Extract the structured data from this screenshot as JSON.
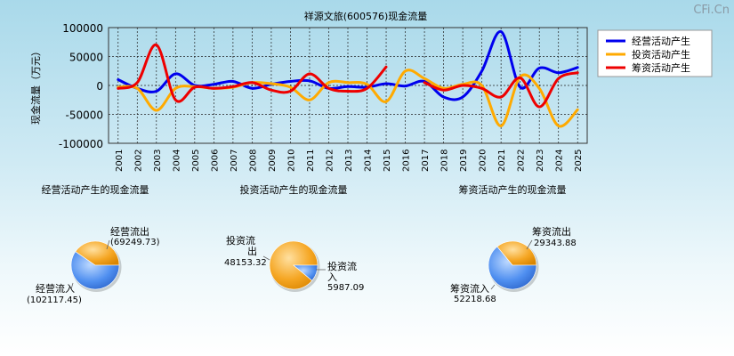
{
  "watermark": "CFi.Cn",
  "chart_data": [
    {
      "type": "line",
      "title": "祥源文旅(600576)现金流量",
      "ylabel": "现金流量（万元）",
      "ylim": [
        -100000,
        100000
      ],
      "yticks": [
        100000,
        50000,
        0,
        -50000,
        -100000
      ],
      "grid": true,
      "legend_position": "right",
      "categories": [
        "2001",
        "2002",
        "2003",
        "2004",
        "2005",
        "2006",
        "2007",
        "2008",
        "2009",
        "2010",
        "2011",
        "2012",
        "2013",
        "2014",
        "2015",
        "2016",
        "2017",
        "2018",
        "2019",
        "2020",
        "2021",
        "2022",
        "2023",
        "2024",
        "2025"
      ],
      "series": [
        {
          "name": "经营活动产生",
          "color": "#0000ee",
          "values": [
            10000,
            -5000,
            -10000,
            20000,
            0,
            2000,
            7000,
            -5000,
            2000,
            7000,
            8000,
            -5000,
            -2000,
            -3000,
            3000,
            -1000,
            7000,
            -20000,
            -20000,
            25000,
            93000,
            -3000,
            30000,
            22000,
            31000
          ]
        },
        {
          "name": "投资活动产生",
          "color": "#ffaa00",
          "values": [
            -3000,
            -5000,
            -43000,
            -5000,
            -2000,
            -5000,
            -3000,
            5000,
            3000,
            -3000,
            -25000,
            5000,
            5000,
            2000,
            -28000,
            25000,
            12000,
            -5000,
            2000,
            0,
            -70000,
            15000,
            -5000,
            -70000,
            -42000
          ]
        },
        {
          "name": "筹资活动产生",
          "color": "#ee0000",
          "values": [
            -5000,
            5000,
            70000,
            -25000,
            -3000,
            -5000,
            -2000,
            5000,
            -8000,
            -10000,
            20000,
            -5000,
            -10000,
            -5000,
            32000,
            null,
            5000,
            -8000,
            0,
            -5000,
            -20000,
            13000,
            -37000,
            12000,
            22000
          ]
        }
      ]
    },
    {
      "type": "pie",
      "title": "经营活动产生的现金流量",
      "slices": [
        {
          "label": "经营流出",
          "value": 69249.73,
          "value_text": "(69249.73)",
          "color": "#f5a623"
        },
        {
          "label": "经营流入",
          "value": 102117.45,
          "value_text": "(102117.45)",
          "color": "#4f8ff0"
        }
      ]
    },
    {
      "type": "pie",
      "title": "投资活动产生的现金流量",
      "slices": [
        {
          "label": "投资流出",
          "value": 48153.32,
          "value_text": "48153.32",
          "color": "#f5a623"
        },
        {
          "label": "投资流入",
          "value": 5987.09,
          "value_text": "5987.09",
          "color": "#4f8ff0"
        }
      ]
    },
    {
      "type": "pie",
      "title": "筹资活动产生的现金流量",
      "slices": [
        {
          "label": "筹资流出",
          "value": 29343.88,
          "value_text": "29343.88",
          "color": "#f5a623"
        },
        {
          "label": "筹资流入",
          "value": 52218.68,
          "value_text": "52218.68",
          "color": "#4f8ff0"
        }
      ]
    }
  ]
}
